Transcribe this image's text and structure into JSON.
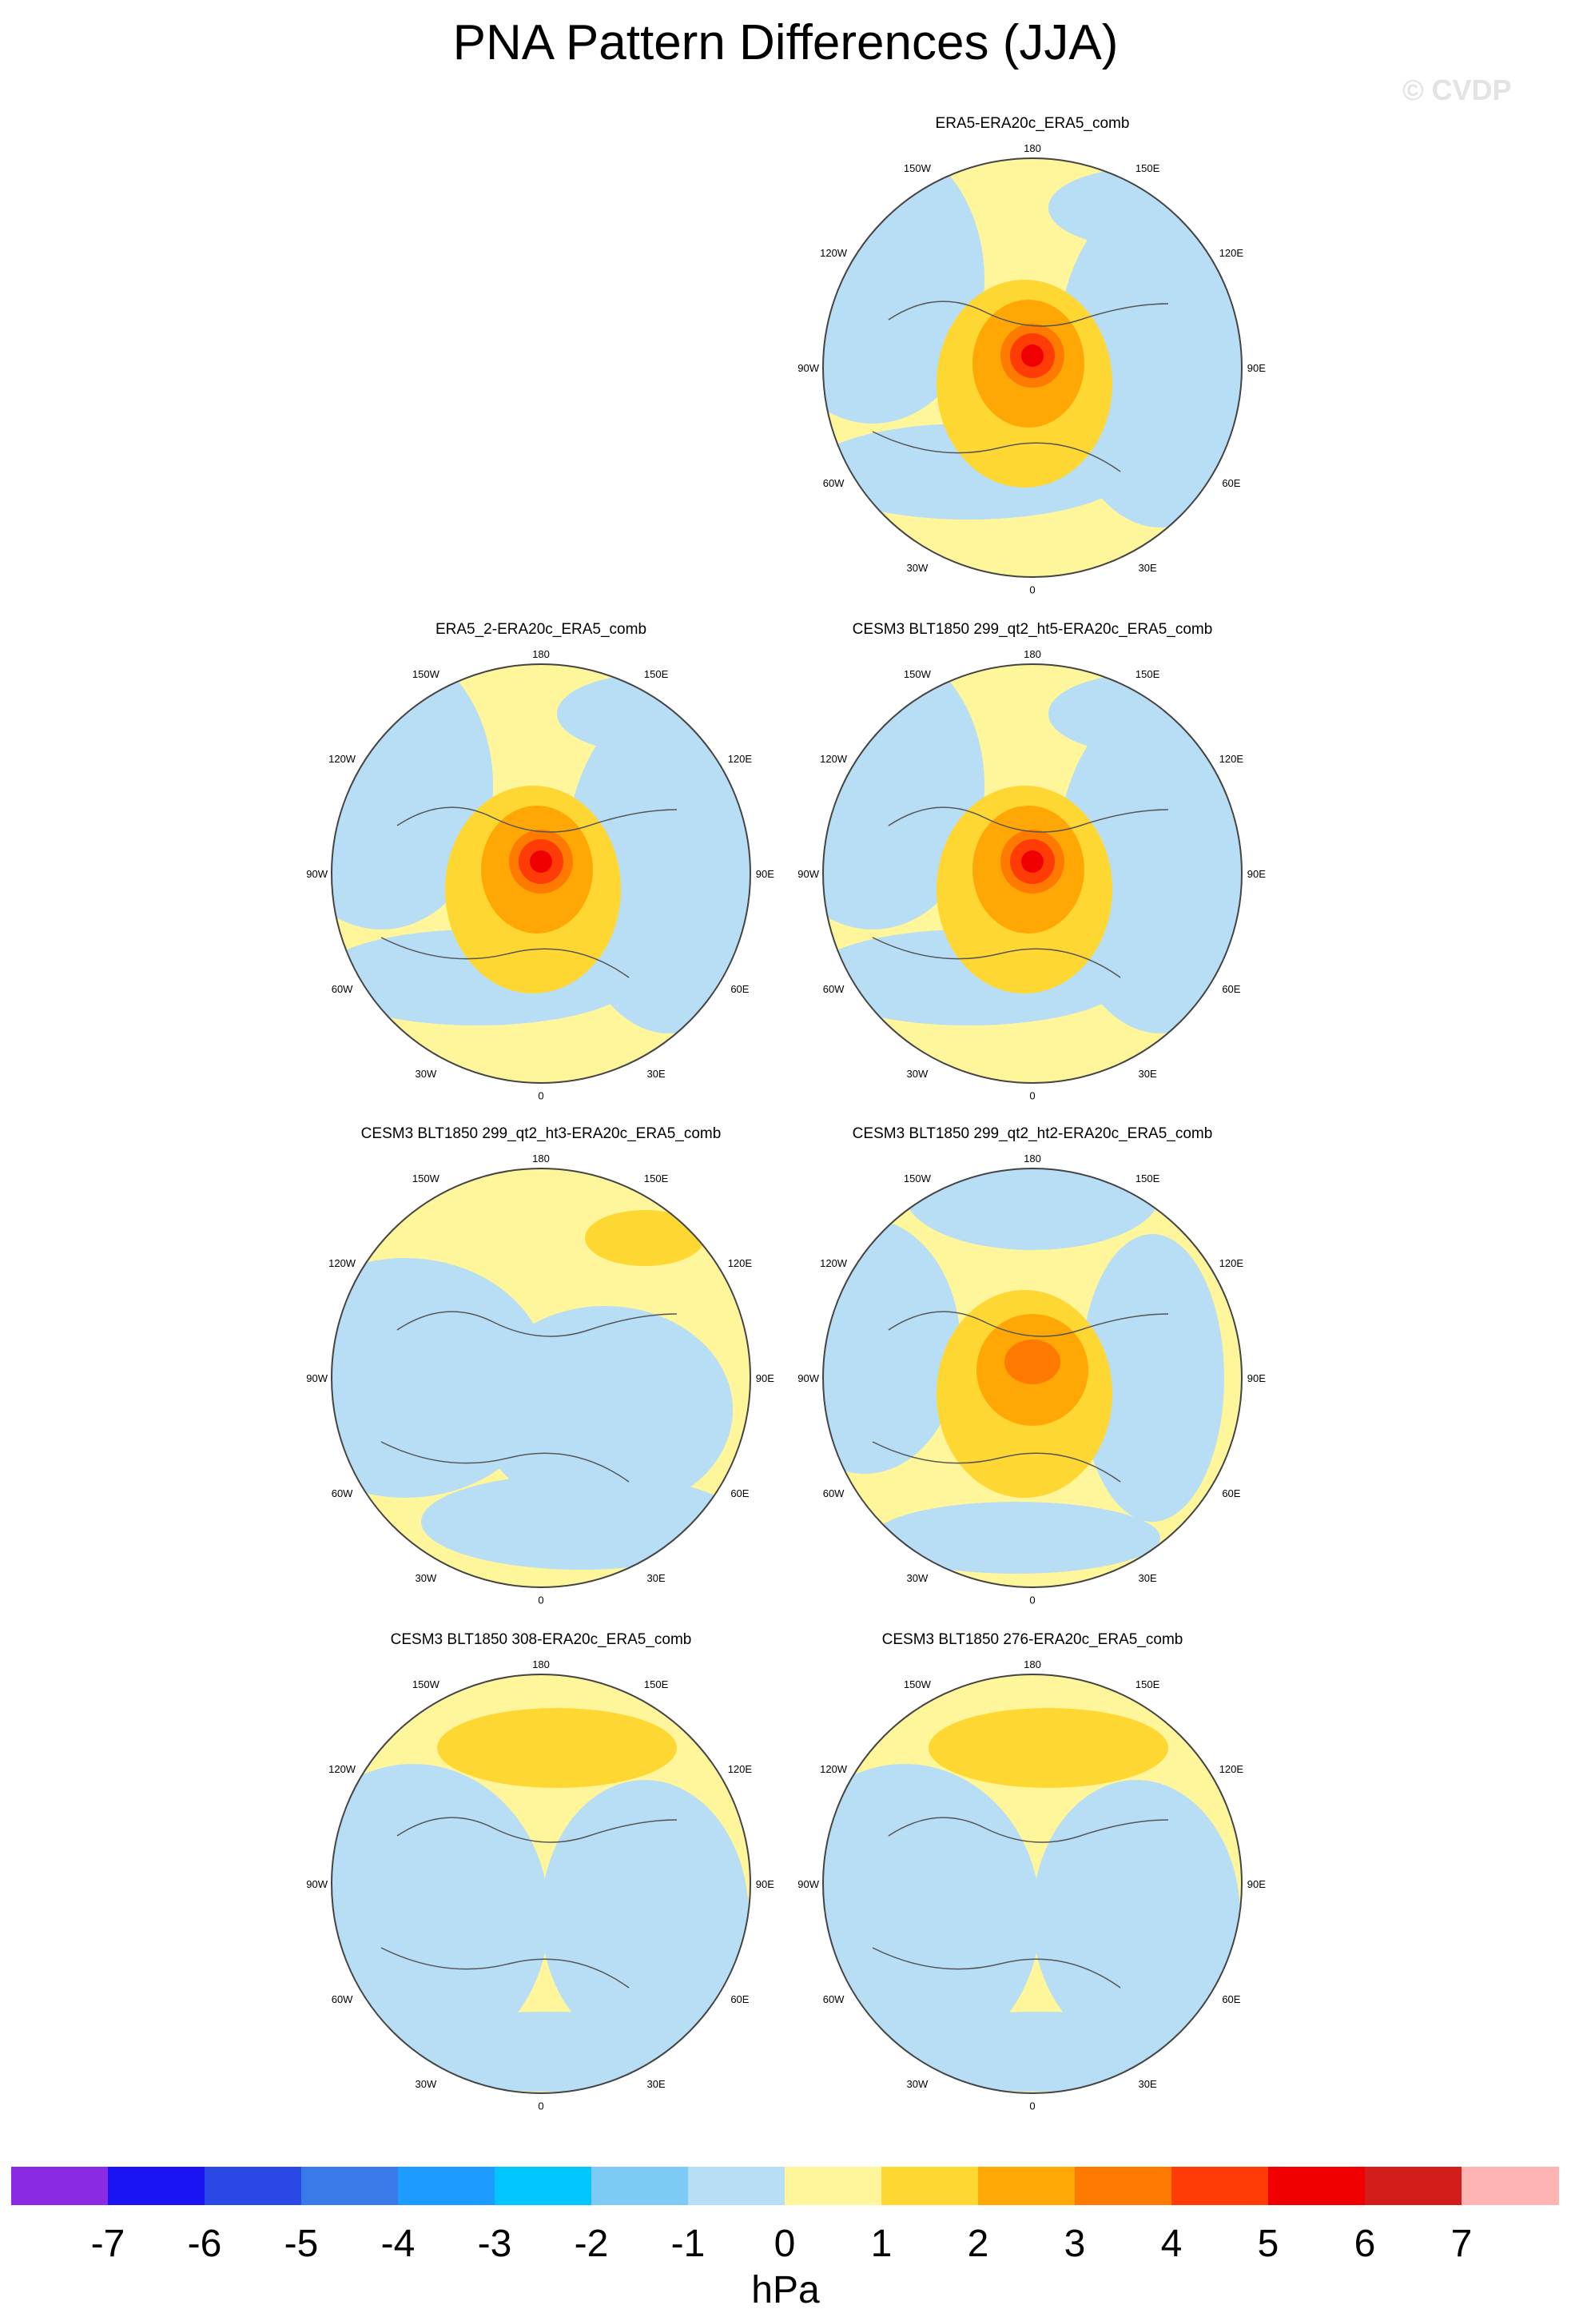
{
  "title": "PNA Pattern Differences (JJA)",
  "watermark": "© CVDP",
  "units": "hPa",
  "colorbar": {
    "labels": [
      "-7",
      "-6",
      "-5",
      "-4",
      "-3",
      "-2",
      "-1",
      "0",
      "1",
      "2",
      "3",
      "4",
      "5",
      "6",
      "7"
    ],
    "colors": [
      "#8a2be2",
      "#1a14f5",
      "#2a48e6",
      "#3a7ae8",
      "#1e9bff",
      "#00c5ff",
      "#7ccaf5",
      "#b7def4",
      "#fff59b",
      "#ffd733",
      "#ffa705",
      "#ff7a00",
      "#ff3b06",
      "#f00000",
      "#d31d1d",
      "#ffb4b4"
    ]
  },
  "lon_labels": {
    "top": "180",
    "bottom": "0",
    "l1": "150W",
    "l2": "120W",
    "l3": "90W",
    "l4": "60W",
    "l5": "30W",
    "r1": "150E",
    "r2": "120E",
    "r3": "90E",
    "r4": "60E",
    "r5": "30E"
  },
  "panels": [
    {
      "title": "ERA5-ERA20c_ERA5_comb",
      "pattern": "strong"
    },
    {
      "title": "ERA5_2-ERA20c_ERA5_comb",
      "pattern": "strong"
    },
    {
      "title": "CESM3 BLT1850 299_qt2_ht5-ERA20c_ERA5_comb",
      "pattern": "strong"
    },
    {
      "title": "CESM3 BLT1850 299_qt2_ht3-ERA20c_ERA5_comb",
      "pattern": "weak"
    },
    {
      "title": "CESM3 BLT1850 299_qt2_ht2-ERA20c_ERA5_comb",
      "pattern": "medium"
    },
    {
      "title": "CESM3 BLT1850 308-ERA20c_ERA5_comb",
      "pattern": "pacific"
    },
    {
      "title": "CESM3 BLT1850 276-ERA20c_ERA5_comb",
      "pattern": "pacific"
    }
  ]
}
